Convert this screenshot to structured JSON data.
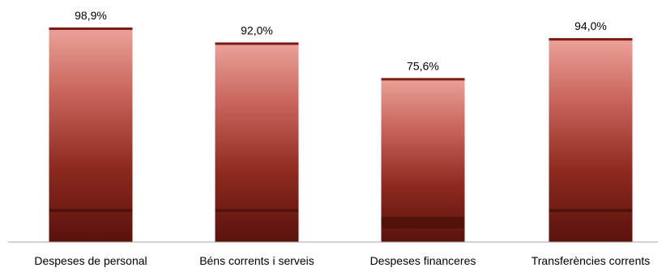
{
  "chart_data": {
    "type": "bar",
    "title": "",
    "xlabel": "",
    "ylabel": "",
    "categories": [
      "Despeses de personal",
      "Béns corrents i serveis",
      "Despeses financeres",
      "Transferències corrents"
    ],
    "values": [
      98.9,
      92.0,
      75.6,
      94.0
    ],
    "value_labels": [
      "98,9%",
      "92,0%",
      "75,6%",
      "94,0%"
    ],
    "value_unit": "%",
    "ylim": [
      0,
      100
    ],
    "grid": false,
    "legend": "none",
    "colors": {
      "bar_top": "#EBA39A",
      "bar_bottom": "#5A120C",
      "bar_cap": "#7A1C14",
      "band_dark": "#4E100B",
      "axis": "#A6A6A6",
      "text": "#000000"
    }
  }
}
